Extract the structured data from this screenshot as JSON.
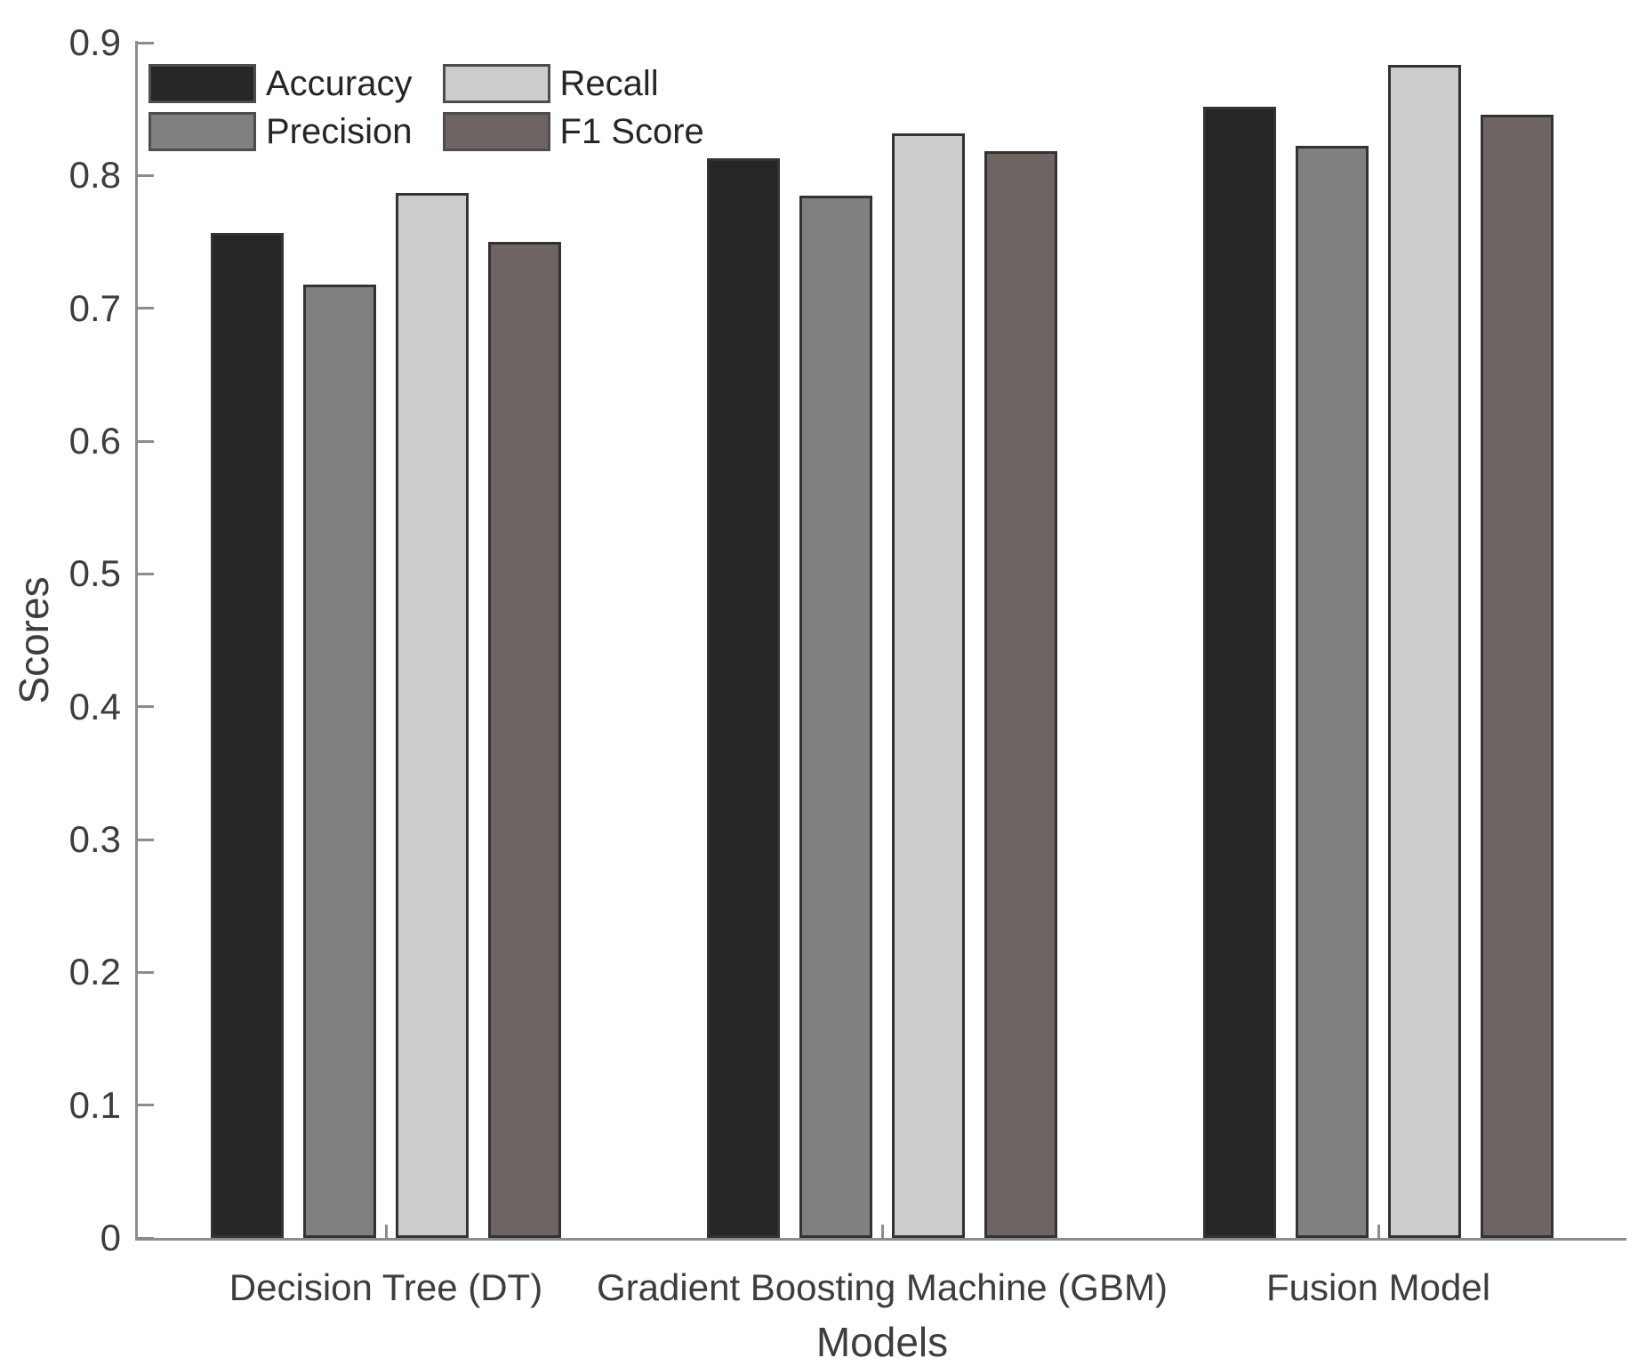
{
  "chart_data": {
    "type": "bar",
    "title": "",
    "xlabel": "Models",
    "ylabel": "Scores",
    "ylim": [
      0,
      0.9
    ],
    "ytick_labels": [
      "0",
      "0.1",
      "0.2",
      "0.3",
      "0.4",
      "0.5",
      "0.6",
      "0.7",
      "0.8",
      "0.9"
    ],
    "categories": [
      "Decision Tree (DT)",
      "Gradient Boosting Machine (GBM)",
      "Fusion Model"
    ],
    "series": [
      {
        "name": "Accuracy",
        "color": "#262626",
        "values": [
          0.757,
          0.813,
          0.852
        ]
      },
      {
        "name": "Precision",
        "color": "#808080",
        "values": [
          0.718,
          0.785,
          0.822
        ]
      },
      {
        "name": "Recall",
        "color": "#cccccc",
        "values": [
          0.787,
          0.832,
          0.883
        ]
      },
      {
        "name": "F1 Score",
        "color": "#6e6563",
        "values": [
          0.75,
          0.818,
          0.846
        ]
      }
    ],
    "legend_position": "top-left",
    "grid": false,
    "colors": {
      "bar_edge": "#333333",
      "axis": "#8c8c8c",
      "text": "#3d3d3d",
      "background": "#ffffff"
    }
  }
}
